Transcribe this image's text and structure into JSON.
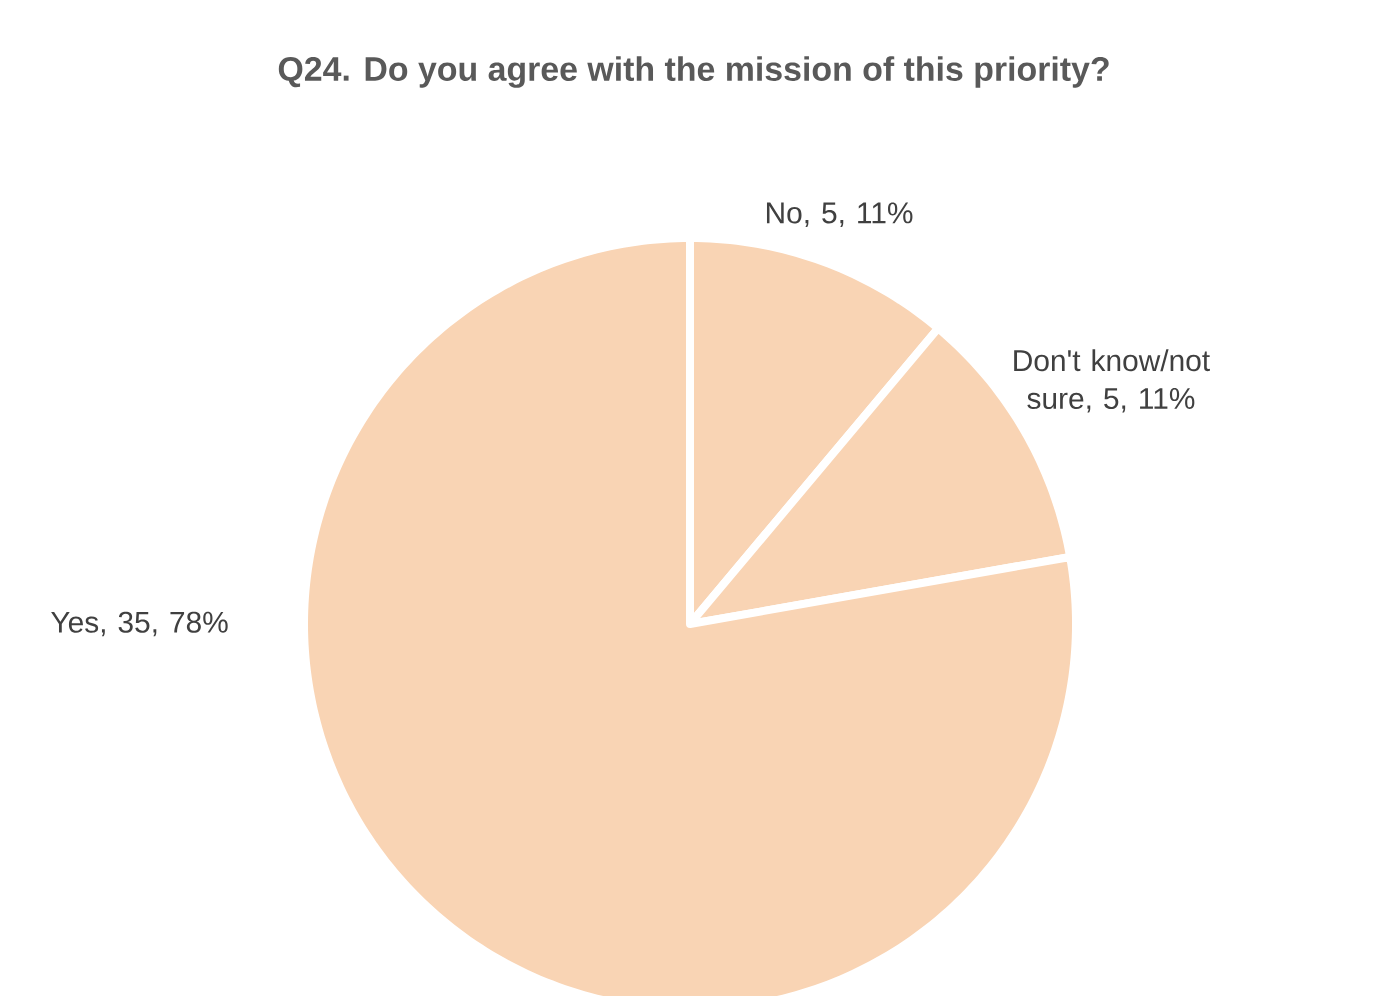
{
  "chart_data": {
    "type": "pie",
    "title": "Q24. Do you agree with the mission of this priority?",
    "categories": [
      "No",
      "Don't know/not sure",
      "Yes"
    ],
    "values": [
      5,
      5,
      35
    ],
    "value_labels": [
      ", 5, 11%",
      ", 5, 11%",
      ", 35, 78%"
    ],
    "colors": [
      "#f9d4b4",
      "#f9d4b4",
      "#f9d4b4"
    ]
  }
}
